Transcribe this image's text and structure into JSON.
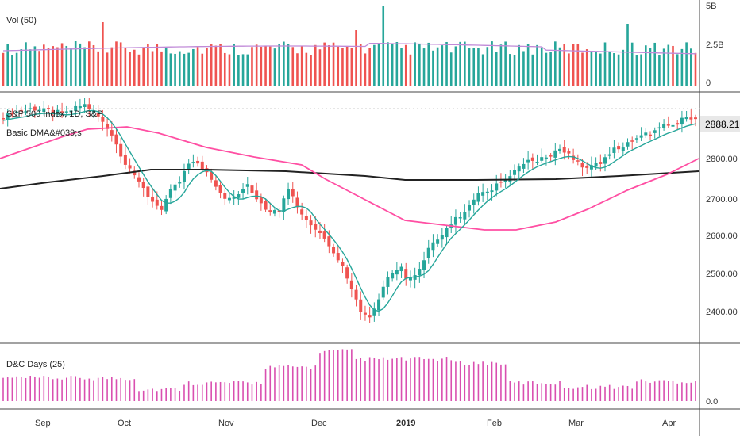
{
  "panels": {
    "volume": {
      "title": "Vol (50)",
      "axis_labels": [
        "5B",
        "2.5B",
        "0"
      ]
    },
    "price": {
      "title": "S&P 500 Index, 1D, S&P",
      "study_label": "Basic DMA&#039;s",
      "last_price": "2888.21",
      "axis_labels": [
        "2800.00",
        "2700.00",
        "2600.00",
        "2500.00",
        "2400.00"
      ]
    },
    "dc": {
      "title": "D&C Days (25)",
      "axis_labels": [
        "0.0"
      ]
    }
  },
  "time_axis": {
    "labels": [
      "Sep",
      "Oct",
      "Nov",
      "Dec",
      "2019",
      "Feb",
      "Mar",
      "Apr"
    ]
  },
  "colors": {
    "up": "#26a69a",
    "down": "#ef5350",
    "ma_short": "#26a69a",
    "ma_mid": "#ff4fa3",
    "ma_long": "#222222",
    "dc_bars": "#d94fb0",
    "vol_ma": "#c08ad8",
    "price_badge": "#e8e8e8"
  },
  "chart_data": {
    "type": "line",
    "title": "S&P 500 Index, 1D, S&P",
    "ylim": [
      2340,
      2955
    ],
    "x": [
      "Sep",
      "Oct",
      "Nov",
      "Dec",
      "2019",
      "Feb",
      "Mar",
      "Apr"
    ],
    "series": [
      {
        "name": "",
        "values": [
          2880,
          2910,
          2740,
          2760,
          2510,
          2700,
          2800,
          2888.21
        ]
      }
    ]
  }
}
